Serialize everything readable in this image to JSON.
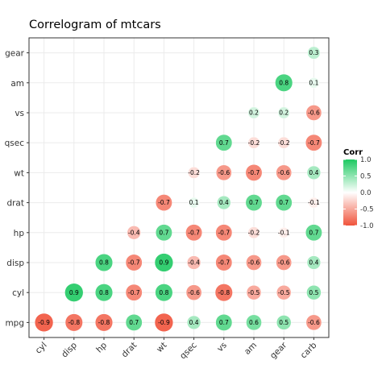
{
  "chart_data": {
    "type": "heatmap",
    "title": "Correlogram of mtcars",
    "variables_x": [
      "cyl",
      "disp",
      "hp",
      "drat",
      "wt",
      "qsec",
      "vs",
      "am",
      "gear",
      "carb"
    ],
    "variables_y": [
      "mpg",
      "cyl",
      "disp",
      "hp",
      "drat",
      "wt",
      "qsec",
      "vs",
      "am",
      "gear"
    ],
    "cells": [
      {
        "x": "cyl",
        "y": "mpg",
        "value": -0.9
      },
      {
        "x": "disp",
        "y": "mpg",
        "value": -0.8
      },
      {
        "x": "hp",
        "y": "mpg",
        "value": -0.8
      },
      {
        "x": "drat",
        "y": "mpg",
        "value": 0.7
      },
      {
        "x": "wt",
        "y": "mpg",
        "value": -0.9
      },
      {
        "x": "qsec",
        "y": "mpg",
        "value": 0.4
      },
      {
        "x": "vs",
        "y": "mpg",
        "value": 0.7
      },
      {
        "x": "am",
        "y": "mpg",
        "value": 0.6
      },
      {
        "x": "gear",
        "y": "mpg",
        "value": 0.5
      },
      {
        "x": "carb",
        "y": "mpg",
        "value": -0.6
      },
      {
        "x": "disp",
        "y": "cyl",
        "value": 0.9
      },
      {
        "x": "hp",
        "y": "cyl",
        "value": 0.8
      },
      {
        "x": "drat",
        "y": "cyl",
        "value": -0.7
      },
      {
        "x": "wt",
        "y": "cyl",
        "value": 0.8
      },
      {
        "x": "qsec",
        "y": "cyl",
        "value": -0.6
      },
      {
        "x": "vs",
        "y": "cyl",
        "value": -0.8
      },
      {
        "x": "am",
        "y": "cyl",
        "value": -0.5
      },
      {
        "x": "gear",
        "y": "cyl",
        "value": -0.5
      },
      {
        "x": "carb",
        "y": "cyl",
        "value": 0.5
      },
      {
        "x": "hp",
        "y": "disp",
        "value": 0.8
      },
      {
        "x": "drat",
        "y": "disp",
        "value": -0.7
      },
      {
        "x": "wt",
        "y": "disp",
        "value": 0.9
      },
      {
        "x": "qsec",
        "y": "disp",
        "value": -0.4
      },
      {
        "x": "vs",
        "y": "disp",
        "value": -0.7
      },
      {
        "x": "am",
        "y": "disp",
        "value": -0.6
      },
      {
        "x": "gear",
        "y": "disp",
        "value": -0.6
      },
      {
        "x": "carb",
        "y": "disp",
        "value": 0.4
      },
      {
        "x": "drat",
        "y": "hp",
        "value": -0.4
      },
      {
        "x": "wt",
        "y": "hp",
        "value": 0.7
      },
      {
        "x": "qsec",
        "y": "hp",
        "value": -0.7
      },
      {
        "x": "vs",
        "y": "hp",
        "value": -0.7
      },
      {
        "x": "am",
        "y": "hp",
        "value": -0.2
      },
      {
        "x": "gear",
        "y": "hp",
        "value": -0.1
      },
      {
        "x": "carb",
        "y": "hp",
        "value": 0.7
      },
      {
        "x": "wt",
        "y": "drat",
        "value": -0.7
      },
      {
        "x": "qsec",
        "y": "drat",
        "value": 0.1
      },
      {
        "x": "vs",
        "y": "drat",
        "value": 0.4
      },
      {
        "x": "am",
        "y": "drat",
        "value": 0.7
      },
      {
        "x": "gear",
        "y": "drat",
        "value": 0.7
      },
      {
        "x": "carb",
        "y": "drat",
        "value": -0.1
      },
      {
        "x": "qsec",
        "y": "wt",
        "value": -0.2
      },
      {
        "x": "vs",
        "y": "wt",
        "value": -0.6
      },
      {
        "x": "am",
        "y": "wt",
        "value": -0.7
      },
      {
        "x": "gear",
        "y": "wt",
        "value": -0.6
      },
      {
        "x": "carb",
        "y": "wt",
        "value": 0.4
      },
      {
        "x": "vs",
        "y": "qsec",
        "value": 0.7
      },
      {
        "x": "am",
        "y": "qsec",
        "value": -0.2
      },
      {
        "x": "gear",
        "y": "qsec",
        "value": -0.2
      },
      {
        "x": "carb",
        "y": "qsec",
        "value": -0.7
      },
      {
        "x": "am",
        "y": "vs",
        "value": 0.2
      },
      {
        "x": "gear",
        "y": "vs",
        "value": 0.2
      },
      {
        "x": "carb",
        "y": "vs",
        "value": -0.6
      },
      {
        "x": "gear",
        "y": "am",
        "value": 0.8
      },
      {
        "x": "carb",
        "y": "am",
        "value": 0.1
      },
      {
        "x": "carb",
        "y": "gear",
        "value": 0.3
      }
    ],
    "legend": {
      "title": "Corr",
      "placement": "right",
      "ticks": [
        {
          "value": 1.0,
          "label": "1.0"
        },
        {
          "value": 0.5,
          "label": "0.5"
        },
        {
          "value": 0.0,
          "label": "0.0"
        },
        {
          "value": -0.5,
          "label": "-0.5"
        },
        {
          "value": -1.0,
          "label": "-1.0"
        }
      ]
    },
    "value_range": [
      -1,
      1
    ],
    "colors": {
      "low": "#f0533b",
      "mid": "#ffffff",
      "high": "#1dc961",
      "panel_border": "#333333",
      "grid": "#ebebeb"
    },
    "grid": true
  }
}
